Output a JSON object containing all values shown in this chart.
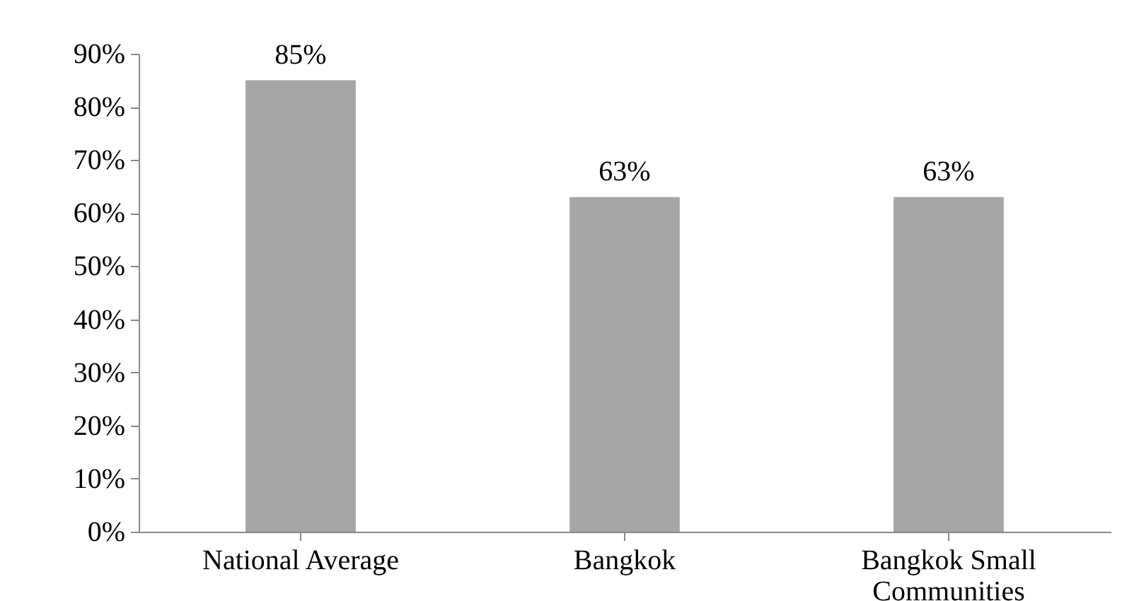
{
  "chart_data": {
    "type": "bar",
    "categories": [
      "National Average",
      "Bangkok",
      "Bangkok Small Communities"
    ],
    "values": [
      85,
      63,
      63
    ],
    "value_labels": [
      "85%",
      "63%",
      "63%"
    ],
    "color": "#a6a6a6",
    "ylim": [
      0,
      90
    ],
    "yticks": [
      {
        "value": 0,
        "label": "0%"
      },
      {
        "value": 10,
        "label": "10%"
      },
      {
        "value": 20,
        "label": "20%"
      },
      {
        "value": 30,
        "label": "30%"
      },
      {
        "value": 40,
        "label": "40%"
      },
      {
        "value": 50,
        "label": "50%"
      },
      {
        "value": 60,
        "label": "60%"
      },
      {
        "value": 70,
        "label": "70%"
      },
      {
        "value": 80,
        "label": "80%"
      },
      {
        "value": 90,
        "label": "90%"
      }
    ],
    "grid": false
  }
}
